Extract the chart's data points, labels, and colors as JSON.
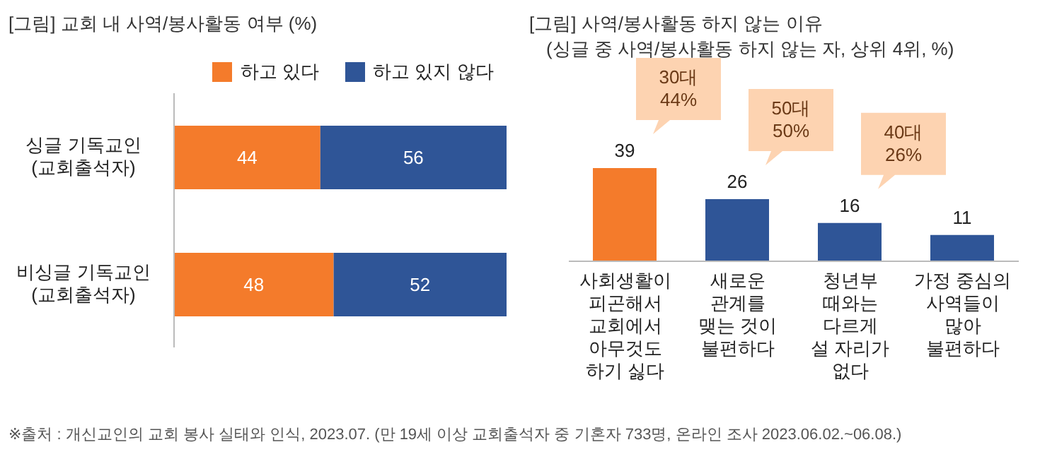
{
  "chart_data": [
    {
      "type": "bar",
      "orientation": "horizontal",
      "stacked": true,
      "title": "[그림] 교회 내 사역/봉사활동 여부 (%)",
      "categories": [
        "싱글 기독교인\n(교회출석자)",
        "비싱글 기독교인\n(교회출석자)"
      ],
      "series": [
        {
          "name": "하고 있다",
          "color": "#f47b2b",
          "values": [
            44,
            48
          ]
        },
        {
          "name": "하고 있지 않다",
          "color": "#2f5597",
          "values": [
            56,
            52
          ]
        }
      ],
      "data_labels": true,
      "legend": "top",
      "annotations": [
        "※출처 : 개신교인의 교회 봉사 실태와 인식, 2023.07. (만 19세 이상 교회출석자 중 기혼자 733명, 온라인 조사 2023.06.02.~06.08.)"
      ]
    },
    {
      "type": "bar",
      "title": "[그림] 사역/봉사활동 하지 않는 이유",
      "subtitle": "(싱글 중 사역/봉사활동 하지 않는 자, 상위 4위, %)",
      "categories": [
        "사회생활이\n피곤해서\n교회에서\n아무것도\n하기 싫다",
        "새로운\n관계를\n맺는 것이\n불편하다",
        "청년부\n때와는\n다르게\n설 자리가\n없다",
        "가정 중심의\n사역들이\n많아\n불편하다"
      ],
      "values": [
        39,
        26,
        16,
        11
      ],
      "colors": [
        "#f47b2b",
        "#2f5597",
        "#2f5597",
        "#2f5597"
      ],
      "data_labels": true,
      "annotations": [
        "30대\n44%",
        "50대\n50%",
        "40대\n26%"
      ]
    }
  ]
}
